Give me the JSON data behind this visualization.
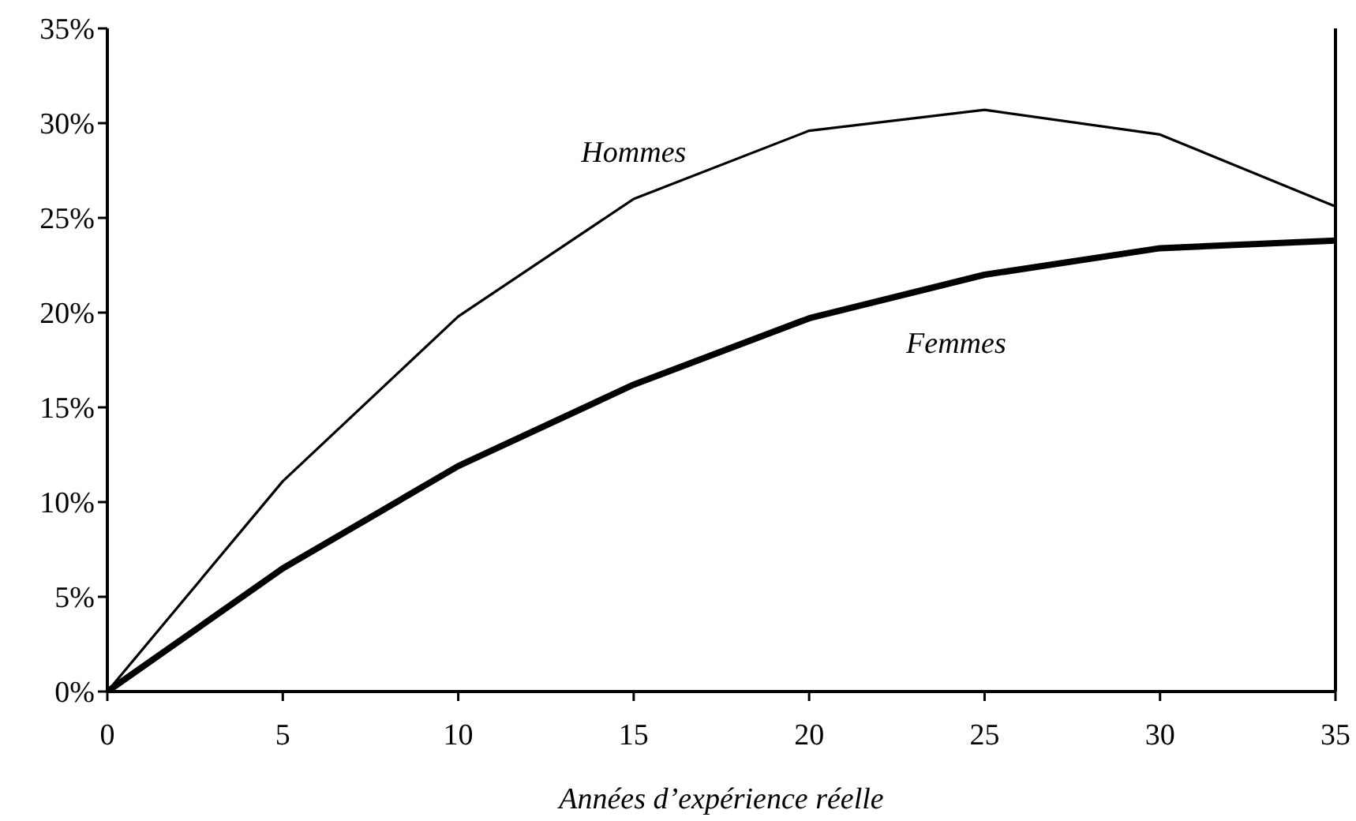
{
  "chart_data": {
    "type": "line",
    "xlabel": "Années d’expérience réelle",
    "x": [
      0,
      5,
      10,
      15,
      20,
      25,
      30,
      35
    ],
    "series": [
      {
        "name": "Hommes",
        "color": "#000000",
        "values": [
          0,
          11.1,
          19.8,
          26.0,
          29.6,
          30.7,
          29.4,
          25.6
        ]
      },
      {
        "name": "Femmes",
        "color": "#000000",
        "values": [
          0,
          6.5,
          11.9,
          16.2,
          19.7,
          22.0,
          23.4,
          23.8
        ]
      }
    ],
    "xlim": [
      0,
      35
    ],
    "xticks": [
      0,
      5,
      10,
      15,
      20,
      25,
      30,
      35
    ],
    "ylim": [
      0,
      35
    ],
    "yticks": [
      {
        "value": 0,
        "label": "0%"
      },
      {
        "value": 5,
        "label": "5%"
      },
      {
        "value": 10,
        "label": "10%"
      },
      {
        "value": 15,
        "label": "15%"
      },
      {
        "value": 20,
        "label": "20%"
      },
      {
        "value": 25,
        "label": "25%"
      },
      {
        "value": 30,
        "label": "30%"
      },
      {
        "value": 35,
        "label": "35%"
      }
    ],
    "grid": false,
    "legend": false,
    "marker": "none",
    "line_style": "solid"
  }
}
